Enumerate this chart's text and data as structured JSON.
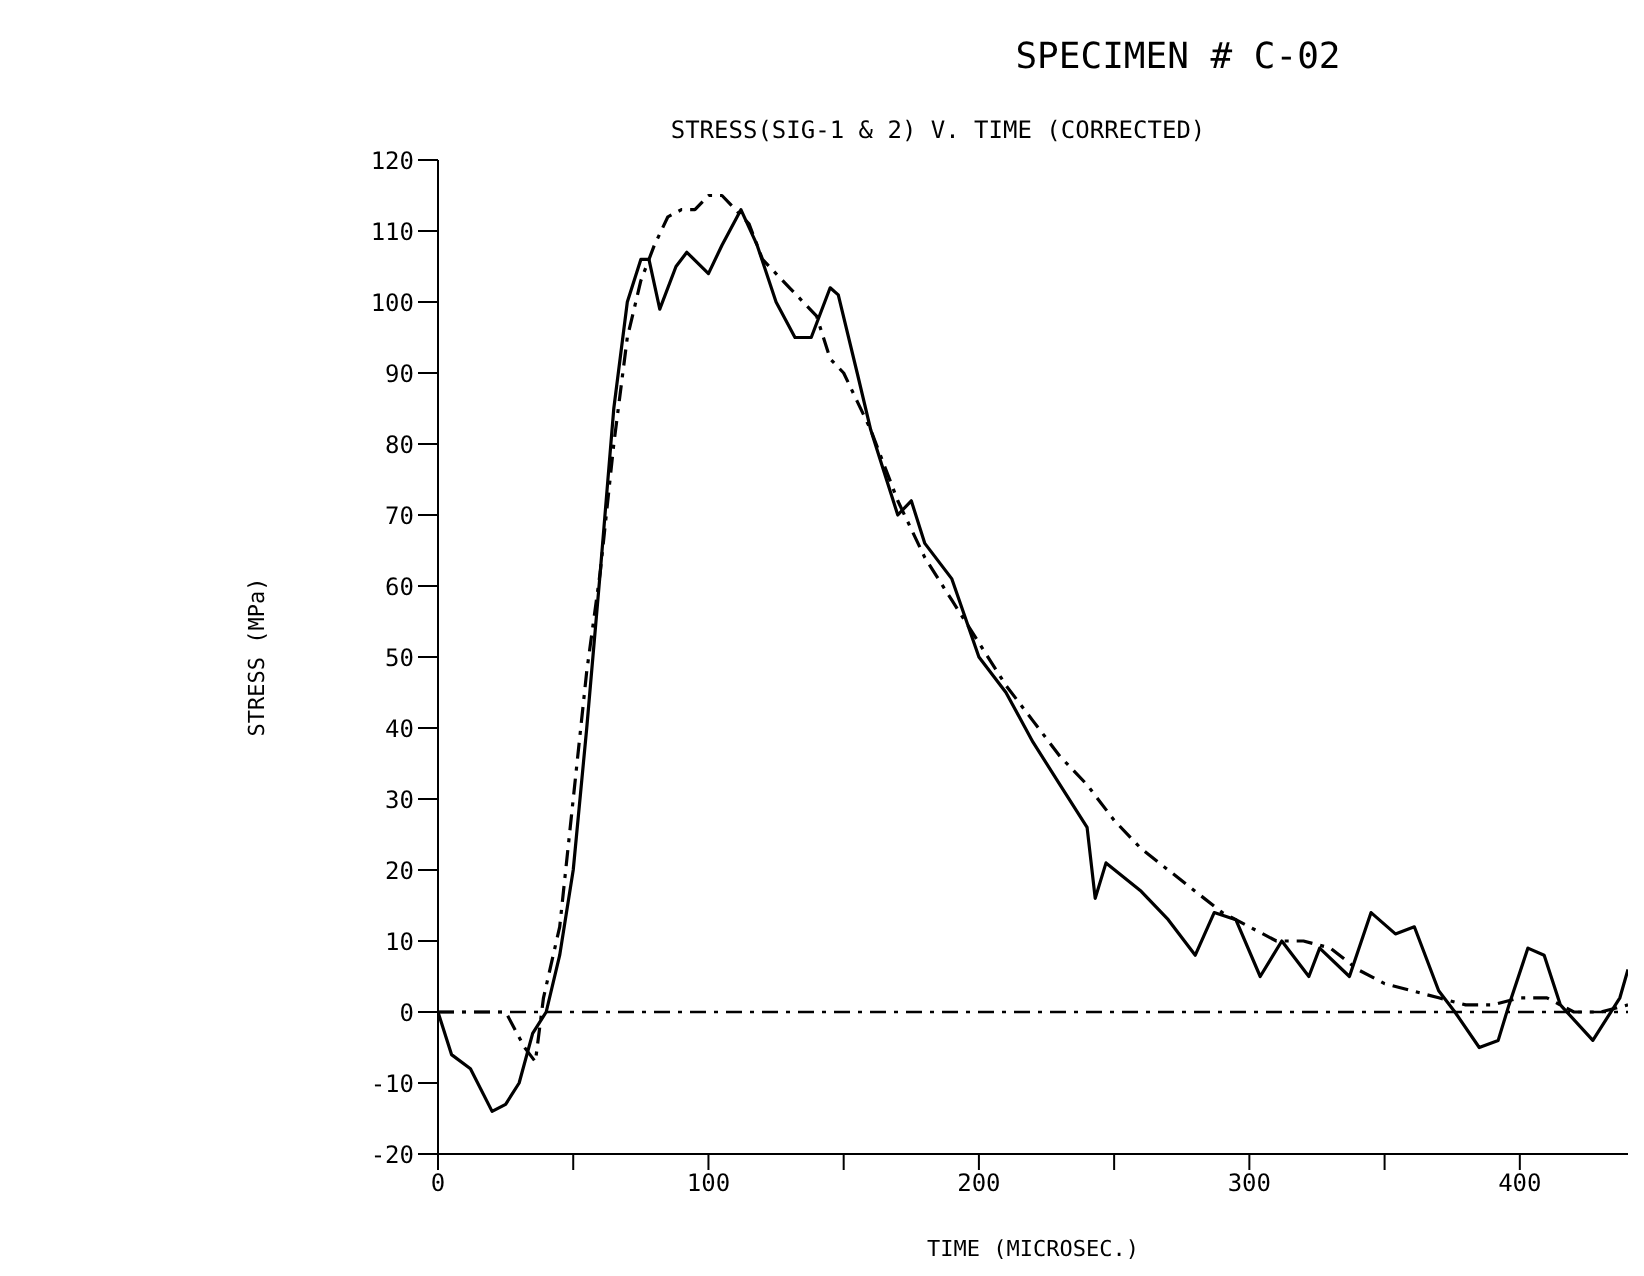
{
  "chart_data": {
    "type": "line",
    "title": "SPECIMEN # C-02",
    "subtitle": "STRESS(SIG-1 & 2) V. TIME (CORRECTED)",
    "xlabel": "TIME (MICROSEC.)",
    "ylabel": "STRESS (MPa)",
    "xlim": [
      0,
      440
    ],
    "xticks": [
      0,
      {
        "value": 50,
        "label": null
      },
      100,
      {
        "value": 150,
        "label": null
      },
      200,
      {
        "value": 250,
        "label": null
      },
      300,
      {
        "value": 350,
        "label": null
      },
      400
    ],
    "ylim": [
      -20,
      120
    ],
    "yticks": [
      -20,
      -10,
      0,
      10,
      20,
      30,
      40,
      50,
      60,
      70,
      80,
      90,
      100,
      110,
      120
    ],
    "ref_lines": [
      {
        "axis": "y",
        "value": 0,
        "color": "#000000",
        "line_style": "dashed"
      }
    ],
    "series": [
      {
        "color": "#000000",
        "line_style": "solid",
        "x": [
          0,
          5,
          12,
          20,
          25,
          30,
          35,
          40,
          45,
          50,
          55,
          60,
          65,
          70,
          75,
          78,
          82,
          88,
          92,
          100,
          105,
          112,
          118,
          125,
          132,
          138,
          145,
          148,
          155,
          160,
          165,
          170,
          175,
          180,
          190,
          200,
          210,
          220,
          230,
          240,
          243,
          247,
          260,
          270,
          280,
          287,
          295,
          304,
          312,
          322,
          326,
          337,
          345,
          354,
          361,
          370,
          376,
          385,
          392,
          396,
          403,
          409,
          415,
          427,
          437,
          440
        ],
        "values": [
          0,
          -6,
          -8,
          -14,
          -13,
          -10,
          -3,
          0,
          8,
          20,
          40,
          62,
          85,
          100,
          106,
          106,
          99,
          105,
          107,
          104,
          108,
          113,
          108,
          100,
          95,
          95,
          102,
          101,
          90,
          82,
          76,
          70,
          72,
          66,
          61,
          50,
          45,
          38,
          32,
          26,
          16,
          21,
          17,
          13,
          8,
          14,
          13,
          5,
          10,
          5,
          9,
          5,
          14,
          11,
          12,
          3,
          0,
          -5,
          -4,
          1,
          9,
          8,
          1,
          -4,
          2,
          6
        ]
      },
      {
        "color": "#000000",
        "line_style": "dashed",
        "x": [
          0,
          25,
          32,
          36,
          39,
          45,
          50,
          55,
          60,
          65,
          70,
          75,
          80,
          85,
          90,
          95,
          100,
          105,
          110,
          115,
          120,
          130,
          140,
          145,
          150,
          155,
          160,
          170,
          180,
          190,
          200,
          210,
          220,
          230,
          240,
          250,
          260,
          270,
          280,
          290,
          300,
          310,
          320,
          330,
          340,
          350,
          360,
          370,
          380,
          390,
          400,
          410,
          420,
          430,
          440
        ],
        "values": [
          0,
          0,
          -5,
          -7,
          2,
          12,
          30,
          48,
          62,
          80,
          95,
          103,
          108,
          112,
          113,
          113,
          115,
          115,
          113,
          111,
          106,
          102,
          98,
          92,
          90,
          86,
          82,
          72,
          64,
          58,
          52,
          46,
          41,
          36,
          32,
          27,
          23,
          20,
          17,
          14,
          12,
          10,
          10,
          9,
          6,
          4,
          3,
          2,
          1,
          1,
          2,
          2,
          0,
          0,
          1
        ]
      }
    ]
  }
}
